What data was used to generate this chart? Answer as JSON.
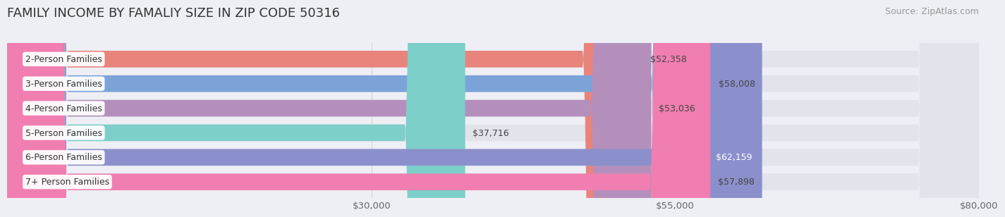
{
  "title": "FAMILY INCOME BY FAMALIY SIZE IN ZIP CODE 50316",
  "source": "Source: ZipAtlas.com",
  "categories": [
    "2-Person Families",
    "3-Person Families",
    "4-Person Families",
    "5-Person Families",
    "6-Person Families",
    "7+ Person Families"
  ],
  "values": [
    52358,
    58008,
    53036,
    37716,
    62159,
    57898
  ],
  "bar_colors": [
    "#E8847C",
    "#7BA3D8",
    "#B48FBC",
    "#7DCFC9",
    "#8B90CC",
    "#F07EB0"
  ],
  "value_labels": [
    "$52,358",
    "$58,008",
    "$53,036",
    "$37,716",
    "$62,159",
    "$57,898"
  ],
  "value_inside": [
    false,
    false,
    false,
    false,
    true,
    false
  ],
  "xlim": [
    0,
    80000
  ],
  "xticks": [
    30000,
    55000,
    80000
  ],
  "xtick_labels": [
    "$30,000",
    "$55,000",
    "$80,000"
  ],
  "background_color": "#eeeff5",
  "bar_bg_color": "#e2e3eb",
  "bar_height": 0.68,
  "title_fontsize": 13,
  "source_fontsize": 9,
  "tick_fontsize": 9.5,
  "value_fontsize": 9,
  "label_fontsize": 9
}
